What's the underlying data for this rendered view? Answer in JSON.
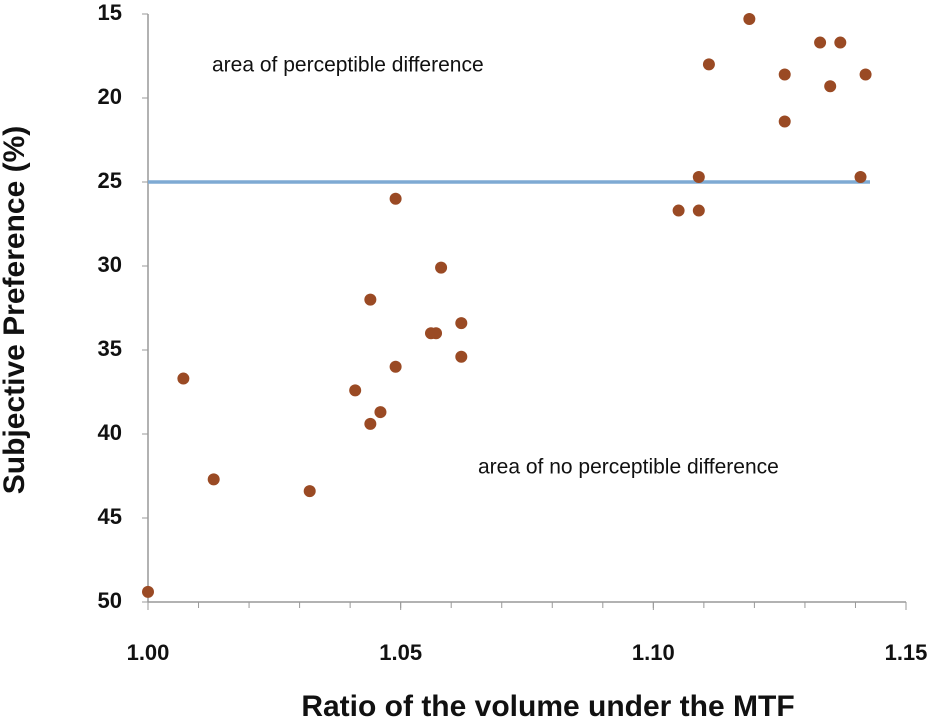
{
  "chart_data": {
    "type": "scatter",
    "xlabel": "Ratio of the volume under the MTF",
    "ylabel": "Subjective Preference (%)",
    "x": [
      1.0,
      1.007,
      1.013,
      1.032,
      1.041,
      1.044,
      1.044,
      1.046,
      1.049,
      1.049,
      1.056,
      1.057,
      1.058,
      1.062,
      1.062,
      1.105,
      1.109,
      1.109,
      1.111,
      1.119,
      1.126,
      1.126,
      1.133,
      1.137,
      1.135,
      1.141,
      1.142
    ],
    "values": [
      49.4,
      36.7,
      42.7,
      43.4,
      37.4,
      32.0,
      39.4,
      38.7,
      26.0,
      36.0,
      34.0,
      34.0,
      30.1,
      33.4,
      35.4,
      26.7,
      26.7,
      24.7,
      18.0,
      15.3,
      18.6,
      21.4,
      16.7,
      16.7,
      19.3,
      24.7,
      18.6
    ],
    "color": "#9a4a24",
    "xlim": [
      1.0,
      1.15
    ],
    "xticks": [
      {
        "value": 1.0,
        "label": "1.00"
      },
      1.05,
      {
        "value": 1.1,
        "label": "1.10"
      },
      1.15
    ],
    "ylim": [
      15,
      50
    ],
    "yticks": [
      15,
      20,
      25,
      30,
      35,
      40,
      45,
      50
    ],
    "y_inverted": true,
    "reference_line": {
      "value": 25,
      "color": "#7eaad3"
    },
    "annotations": [
      "area of perceptible difference",
      "area of no perceptible difference"
    ]
  }
}
